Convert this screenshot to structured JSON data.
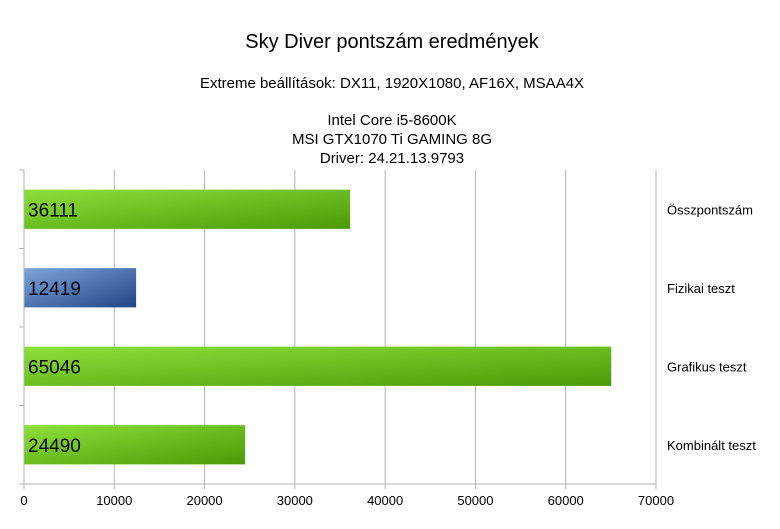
{
  "chart_data": {
    "type": "bar",
    "orientation": "horizontal",
    "title": "Sky Diver pontszám eredmények",
    "subtitle_lines": [
      "Extreme beállítások: DX11, 1920X1080, AF16X, MSAA4X",
      "Intel Core i5-8600K",
      "MSI GTX1070 Ti GAMING 8G",
      "Driver: 24.21.13.9793"
    ],
    "categories": [
      "Összpontszám",
      "Fizikai teszt",
      "Grafikus teszt",
      "Kombinált teszt"
    ],
    "values": [
      36111,
      12419,
      65046,
      24490
    ],
    "value_labels": [
      "36111",
      "12419",
      "65046",
      "24490"
    ],
    "bar_colors": [
      "#5fb51d",
      "#2f5a9a",
      "#5fb51d",
      "#5fb51d"
    ],
    "xlim": [
      0,
      70000
    ],
    "x_ticks": [
      "0",
      "10000",
      "20000",
      "30000",
      "40000",
      "50000",
      "60000",
      "70000"
    ],
    "grid": true,
    "category_label_position": "right"
  }
}
